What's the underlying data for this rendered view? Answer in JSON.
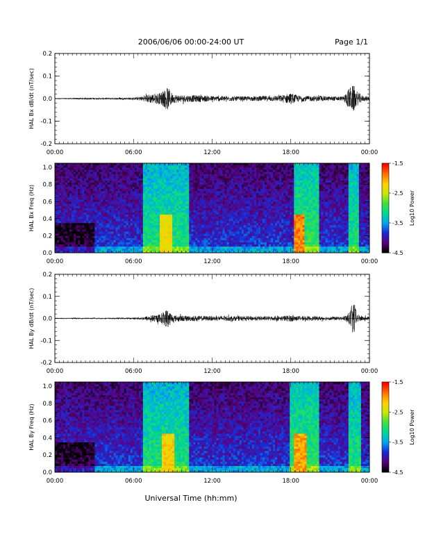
{
  "header": {
    "title": "2006/06/06  00:00-24:00 UT",
    "page": "Page 1/1"
  },
  "footer": {
    "xlabel": "Universal Time (hh:mm)"
  },
  "colors": {
    "trace": "#000000",
    "colormap": [
      "#000000",
      "#5a007a",
      "#1a2ad6",
      "#00a8f0",
      "#00d890",
      "#40e040",
      "#c8e800",
      "#ffd000",
      "#ff7000",
      "#ff0000"
    ]
  },
  "chart_data": [
    {
      "type": "line",
      "ylabel": "HAL Bx dB/dt (nT/sec)",
      "ylim": [
        -0.2,
        0.2
      ],
      "yticks": [
        "0.2",
        "0.1",
        "0.0",
        "-0.1",
        "-0.2"
      ],
      "xlim": [
        0,
        24
      ],
      "xticks": [
        "00:00",
        "06:00",
        "12:00",
        "18:00",
        "00:00"
      ],
      "envelope": {
        "x": [
          0,
          2,
          4,
          6,
          6.8,
          7.2,
          8,
          8.4,
          8.6,
          9,
          10,
          11,
          12,
          13,
          14,
          15,
          16,
          17,
          18,
          18.5,
          19,
          20,
          21,
          22,
          22.5,
          22.8,
          23,
          23.5,
          24
        ],
        "amplitude": [
          0.002,
          0.004,
          0.004,
          0.005,
          0.012,
          0.02,
          0.025,
          0.04,
          0.05,
          0.02,
          0.015,
          0.015,
          0.012,
          0.012,
          0.01,
          0.01,
          0.012,
          0.012,
          0.025,
          0.015,
          0.012,
          0.012,
          0.01,
          0.01,
          0.05,
          0.06,
          0.035,
          0.012,
          0.01
        ]
      }
    },
    {
      "type": "heatmap",
      "ylabel": "HAL Bx Freq (Hz)",
      "ylim": [
        0,
        1.05
      ],
      "yticks": [
        "1.0",
        "0.8",
        "0.6",
        "0.4",
        "0.2",
        "0.0"
      ],
      "xlim": [
        0,
        24
      ],
      "xticks": [
        "00:00",
        "06:00",
        "12:00",
        "18:00",
        "00:00"
      ],
      "colorbar": {
        "label": "Log10 Power",
        "range": [
          -4.5,
          -1.5
        ],
        "ticks": [
          "-1.5",
          "-2.5",
          "-3.5",
          "-4.5"
        ]
      },
      "bands": [
        {
          "x": [
            6.8,
            10.2
          ],
          "level": -3.0,
          "peak_x": 8.5,
          "peak_level": -2.3
        },
        {
          "x": [
            18.2,
            20.2
          ],
          "level": -2.9,
          "peak_x": 18.5,
          "peak_level": -1.9
        },
        {
          "x": [
            22.4,
            23.2
          ],
          "level": -3.0
        }
      ],
      "background_level": -3.8
    },
    {
      "type": "line",
      "ylabel": "HAL By dB/dt (nT/sec)",
      "ylim": [
        -0.2,
        0.2
      ],
      "yticks": [
        "0.2",
        "0.1",
        "0.0",
        "-0.1",
        "-0.2"
      ],
      "xlim": [
        0,
        24
      ],
      "xticks": [
        "00:00",
        "06:00",
        "12:00",
        "18:00",
        "00:00"
      ],
      "envelope": {
        "x": [
          0,
          2,
          4,
          6,
          6.8,
          7.2,
          8,
          8.4,
          8.6,
          9,
          10,
          11,
          12,
          13,
          14,
          15,
          16,
          17,
          18,
          18.5,
          19,
          20,
          21,
          22,
          22.5,
          22.8,
          23,
          23.5,
          24
        ],
        "amplitude": [
          0.002,
          0.003,
          0.003,
          0.004,
          0.008,
          0.012,
          0.02,
          0.035,
          0.045,
          0.015,
          0.012,
          0.012,
          0.01,
          0.012,
          0.01,
          0.01,
          0.01,
          0.01,
          0.015,
          0.01,
          0.01,
          0.01,
          0.008,
          0.008,
          0.03,
          0.09,
          0.02,
          0.01,
          0.008
        ]
      }
    },
    {
      "type": "heatmap",
      "ylabel": "HAL By Freq (Hz)",
      "ylim": [
        0,
        1.05
      ],
      "yticks": [
        "1.0",
        "0.8",
        "0.6",
        "0.4",
        "0.2",
        "0.0"
      ],
      "xlim": [
        0,
        24
      ],
      "xticks": [
        "00:00",
        "06:00",
        "12:00",
        "18:00",
        "00:00"
      ],
      "colorbar": {
        "label": "Log10 Power",
        "range": [
          -4.5,
          -1.5
        ],
        "ticks": [
          "-1.5",
          "-2.5",
          "-3.5",
          "-4.5"
        ]
      },
      "bands": [
        {
          "x": [
            6.8,
            10.2
          ],
          "level": -3.0,
          "peak_x": 8.6,
          "peak_level": -2.2
        },
        {
          "x": [
            18.0,
            20.2
          ],
          "level": -2.9,
          "peak_x": 18.7,
          "peak_level": -2.0
        },
        {
          "x": [
            22.4,
            23.4
          ],
          "level": -3.0
        }
      ],
      "background_level": -3.8
    }
  ]
}
